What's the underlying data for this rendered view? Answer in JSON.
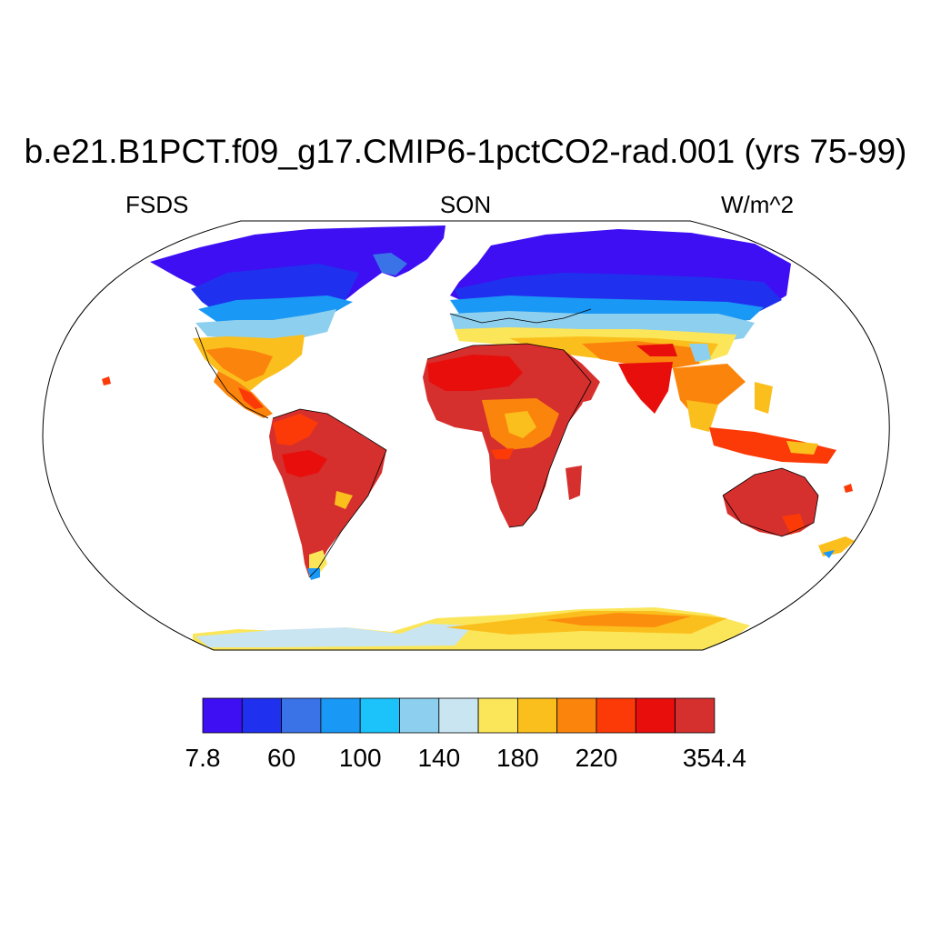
{
  "title": "b.e21.B1PCT.f09_g17.CMIP6-1pctCO2-rad.001 (yrs 75-99)",
  "left_label": "FSDS",
  "center_label": "SON",
  "right_label": "W/m^2",
  "colorbar": {
    "colors": [
      "#3d0ff2",
      "#1f31ee",
      "#3a73e8",
      "#1a98f5",
      "#1cc3fa",
      "#8dcfee",
      "#c9e5f2",
      "#fbe659",
      "#fbbf1d",
      "#fb850c",
      "#fc3a07",
      "#e80e0c",
      "#d5302e"
    ],
    "tick_labels": [
      {
        "label": "7.8",
        "boundary": 0
      },
      {
        "label": "60",
        "boundary": 2
      },
      {
        "label": "100",
        "boundary": 4
      },
      {
        "label": "140",
        "boundary": 6
      },
      {
        "label": "180",
        "boundary": 8
      },
      {
        "label": "220",
        "boundary": 10
      },
      {
        "label": "354.4",
        "boundary": 13
      }
    ]
  },
  "map": {
    "projection": "Robinson",
    "variable": "FSDS",
    "season": "SON",
    "units": "W/m^2",
    "value_range": [
      7.8,
      354.4
    ]
  }
}
